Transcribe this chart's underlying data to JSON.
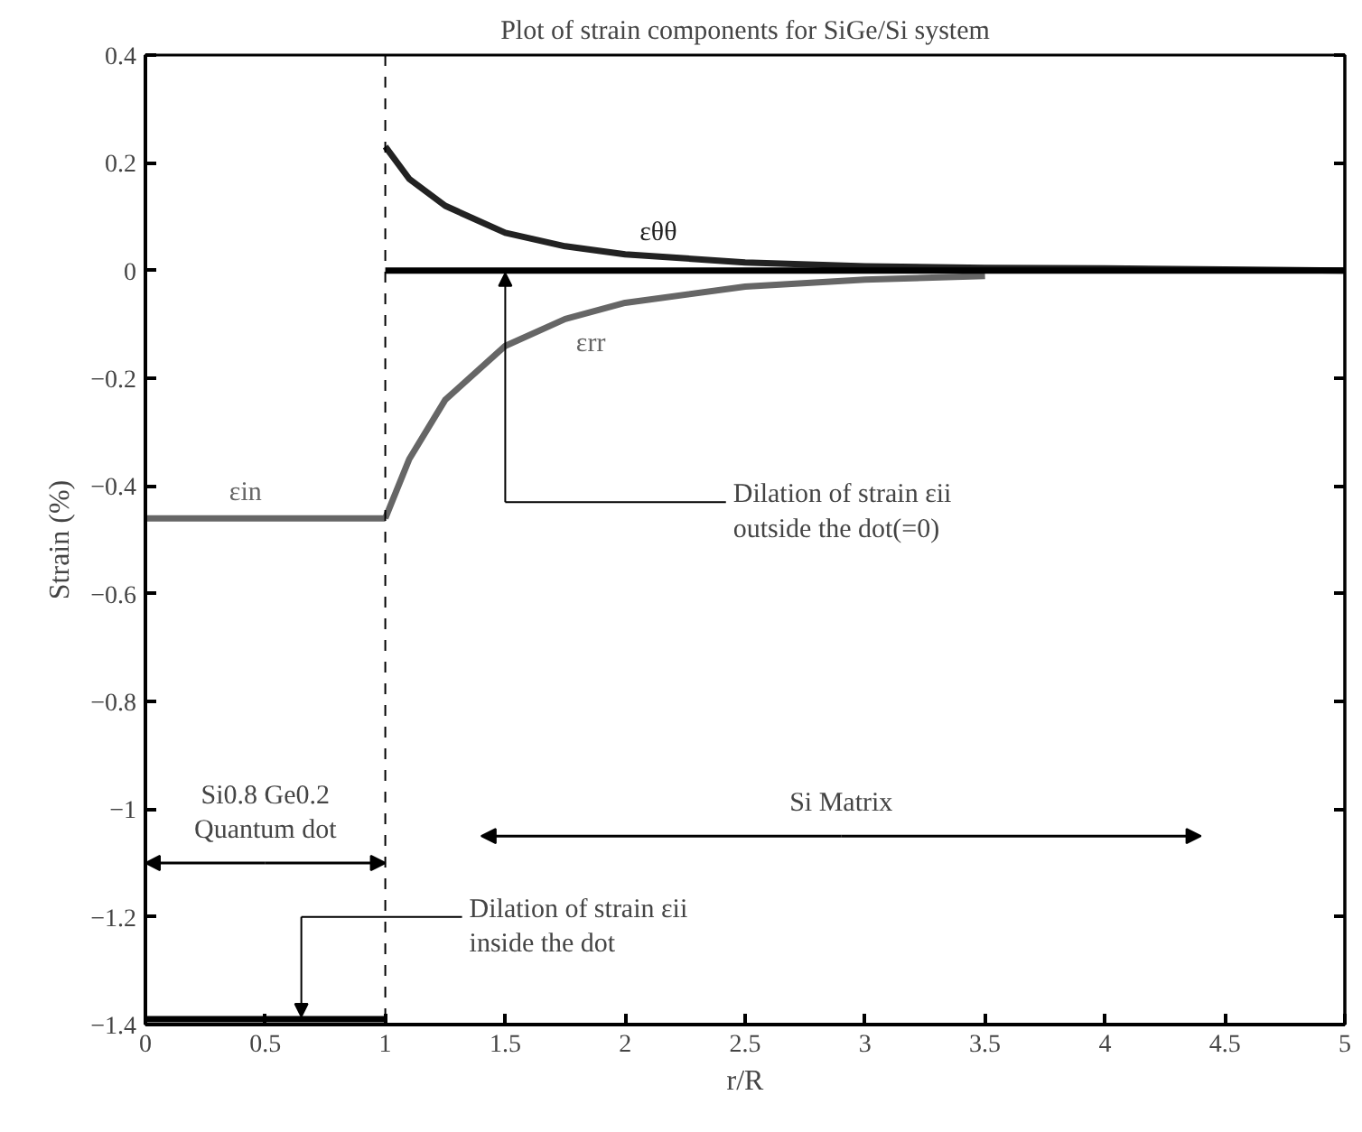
{
  "chart_data": {
    "type": "line",
    "title": "Plot of strain components for SiGe/Si system",
    "xlabel": "r/R",
    "ylabel": "Strain (%)",
    "xlim": [
      0,
      5
    ],
    "ylim": [
      -1.4,
      0.4
    ],
    "xticks": [
      0,
      0.5,
      1,
      1.5,
      2,
      2.5,
      3,
      3.5,
      4,
      4.5,
      5
    ],
    "yticks": [
      {
        "value": -1.4,
        "label": "−1.4"
      },
      {
        "value": -1.2,
        "label": "−1.2"
      },
      {
        "value": -1,
        "label": "−1"
      },
      {
        "value": -0.8,
        "label": "−0.8"
      },
      {
        "value": -0.6,
        "label": "−0.6"
      },
      {
        "value": -0.4,
        "label": "−0.4"
      },
      {
        "value": -0.2,
        "label": "−0.2"
      },
      0,
      0.2,
      0.4
    ],
    "grid": false,
    "line_style": "solid",
    "series": [
      {
        "name": "εθθ",
        "color": "#222222",
        "x": [
          1,
          1.1,
          1.25,
          1.5,
          1.75,
          2,
          2.5,
          3,
          3.5,
          4,
          4.5,
          5
        ],
        "values": [
          0.23,
          0.17,
          0.12,
          0.07,
          0.045,
          0.03,
          0.015,
          0.008,
          0.005,
          0.004,
          0.002,
          0
        ]
      },
      {
        "name": "εin",
        "color": "#666666",
        "x": [
          0,
          0.5,
          1
        ],
        "values": [
          -0.46,
          -0.46,
          -0.46
        ]
      },
      {
        "name": "εrr",
        "color": "#666666",
        "x": [
          1,
          1.1,
          1.25,
          1.5,
          1.75,
          2,
          2.5,
          3,
          3.5
        ],
        "values": [
          -0.46,
          -0.35,
          -0.24,
          -0.14,
          -0.09,
          -0.06,
          -0.03,
          -0.017,
          -0.01
        ]
      },
      {
        "color": "#000000",
        "x": [
          1,
          5
        ],
        "values": [
          0,
          0
        ]
      },
      {
        "color": "#000000",
        "x": [
          0,
          1
        ],
        "values": [
          -1.39,
          -1.39
        ]
      }
    ],
    "ref_lines": [
      {
        "axis": "x",
        "value": 1,
        "line_style": "dashed",
        "color": "#000000"
      }
    ],
    "annotations": [
      {
        "text": "Si0.8 Ge0.2\nQuantum dot",
        "x": 1,
        "y": -1.1
      },
      "Si Matrix",
      "Dilation of strain εii\noutside the dot(=0)",
      "Dilation of strain εii\ninside the dot"
    ]
  }
}
